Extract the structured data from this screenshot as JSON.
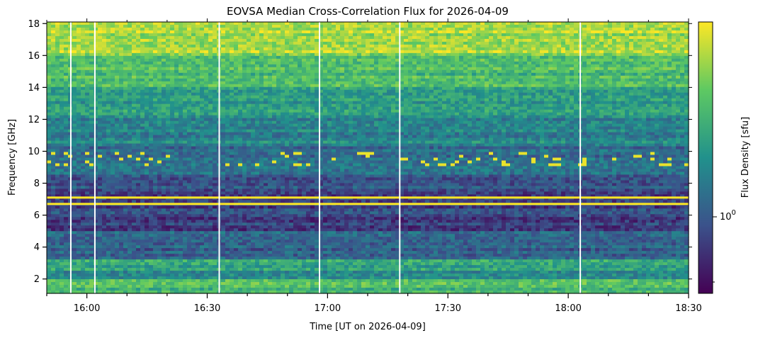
{
  "chart_data": {
    "type": "heatmap",
    "title": "EOVSA Median Cross-Correlation Flux for 2026-04-09",
    "xlabel": "Time [UT on 2026-04-09]",
    "ylabel": "Frequency [GHz]",
    "x_range": [
      "15:50",
      "18:30"
    ],
    "x_ticks": [
      "16:00",
      "16:30",
      "17:00",
      "17:30",
      "18:00",
      "18:30"
    ],
    "y_range": [
      1.1,
      18.1
    ],
    "y_ticks": [
      2,
      4,
      6,
      8,
      10,
      12,
      14,
      16,
      18
    ],
    "colorbar": {
      "label": "Flux Density [sfu]",
      "scale": "log",
      "colormap": "viridis",
      "tick_label_base": "10",
      "tick_label_exp": "0",
      "tick_value": 1
    },
    "colormap_stops": [
      "#440154",
      "#3b528b",
      "#21918c",
      "#5ec962",
      "#fde725"
    ],
    "data_gaps_time": [
      "15:56",
      "16:02",
      "16:33",
      "16:58",
      "17:18",
      "18:03"
    ],
    "intense_frequency_bands_ghz": [
      7.1,
      6.7
    ],
    "grid": false
  }
}
